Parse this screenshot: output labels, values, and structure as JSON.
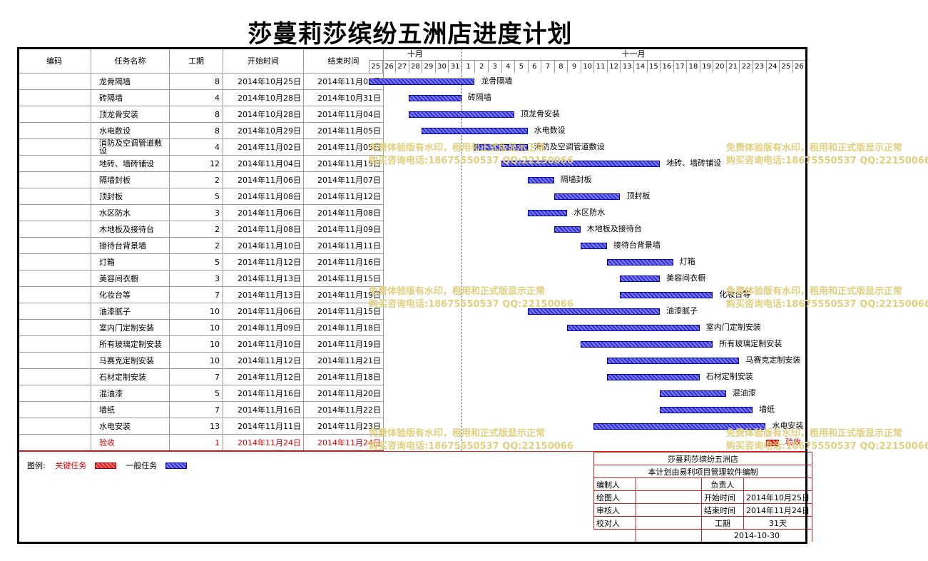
{
  "title": "莎蔓莉莎缤纷五洲店进度计划",
  "headers": {
    "code": "编码",
    "name": "任务名称",
    "duration": "工期",
    "start": "开始时间",
    "end": "结束时间"
  },
  "months": [
    {
      "label": "十月"
    },
    {
      "label": "十一月"
    }
  ],
  "days": [
    "25",
    "26",
    "27",
    "28",
    "29",
    "30",
    "31",
    "1",
    "2",
    "3",
    "4",
    "5",
    "6",
    "7",
    "8",
    "9",
    "10",
    "11",
    "12",
    "13",
    "14",
    "15",
    "16",
    "17",
    "18",
    "19",
    "20",
    "21",
    "22",
    "23",
    "24",
    "25",
    "26"
  ],
  "tasks": [
    {
      "code": "",
      "name": "龙骨隔墙",
      "duration": "8",
      "start": "2014年10月25日",
      "end": "2014年11月01日",
      "critical": false,
      "s": 0,
      "e": 8
    },
    {
      "code": "",
      "name": "砖隔墙",
      "duration": "4",
      "start": "2014年10月28日",
      "end": "2014年10月31日",
      "critical": false,
      "s": 3,
      "e": 7
    },
    {
      "code": "",
      "name": "顶龙骨安装",
      "duration": "8",
      "start": "2014年10月28日",
      "end": "2014年11月04日",
      "critical": false,
      "s": 3,
      "e": 11
    },
    {
      "code": "",
      "name": "水电数设",
      "duration": "8",
      "start": "2014年10月29日",
      "end": "2014年11月05日",
      "critical": false,
      "s": 4,
      "e": 12
    },
    {
      "code": "",
      "name": "消防及空调管道敷设",
      "duration": "4",
      "start": "2014年11月02日",
      "end": "2014年11月05日",
      "critical": false,
      "s": 8,
      "e": 12
    },
    {
      "code": "",
      "name": "地砖、墙砖铺设",
      "duration": "12",
      "start": "2014年11月04日",
      "end": "2014年11月15日",
      "critical": false,
      "s": 10,
      "e": 22
    },
    {
      "code": "",
      "name": "隔墙封板",
      "duration": "2",
      "start": "2014年11月06日",
      "end": "2014年11月07日",
      "critical": false,
      "s": 12,
      "e": 14
    },
    {
      "code": "",
      "name": "顶封板",
      "duration": "5",
      "start": "2014年11月08日",
      "end": "2014年11月12日",
      "critical": false,
      "s": 14,
      "e": 19
    },
    {
      "code": "",
      "name": "水区防水",
      "duration": "3",
      "start": "2014年11月06日",
      "end": "2014年11月08日",
      "critical": false,
      "s": 12,
      "e": 15
    },
    {
      "code": "",
      "name": "木地板及接待台",
      "duration": "2",
      "start": "2014年11月08日",
      "end": "2014年11月09日",
      "critical": false,
      "s": 14,
      "e": 16
    },
    {
      "code": "",
      "name": "接待台背景墙",
      "duration": "2",
      "start": "2014年11月10日",
      "end": "2014年11月11日",
      "critical": false,
      "s": 16,
      "e": 18
    },
    {
      "code": "",
      "name": "灯箱",
      "duration": "5",
      "start": "2014年11月12日",
      "end": "2014年11月16日",
      "critical": false,
      "s": 18,
      "e": 23
    },
    {
      "code": "",
      "name": "美容间衣橱",
      "duration": "3",
      "start": "2014年11月13日",
      "end": "2014年11月15日",
      "critical": false,
      "s": 19,
      "e": 22
    },
    {
      "code": "",
      "name": "化妆台等",
      "duration": "7",
      "start": "2014年11月13日",
      "end": "2014年11月19日",
      "critical": false,
      "s": 19,
      "e": 26
    },
    {
      "code": "",
      "name": "油漆腻子",
      "duration": "10",
      "start": "2014年11月06日",
      "end": "2014年11月15日",
      "critical": false,
      "s": 12,
      "e": 22
    },
    {
      "code": "",
      "name": "室内门定制安装",
      "duration": "10",
      "start": "2014年11月09日",
      "end": "2014年11月18日",
      "critical": false,
      "s": 15,
      "e": 25
    },
    {
      "code": "",
      "name": "所有玻璃定制安装",
      "duration": "10",
      "start": "2014年11月10日",
      "end": "2014年11月19日",
      "critical": false,
      "s": 16,
      "e": 26
    },
    {
      "code": "",
      "name": "马赛克定制安装",
      "duration": "10",
      "start": "2014年11月12日",
      "end": "2014年11月21日",
      "critical": false,
      "s": 18,
      "e": 28
    },
    {
      "code": "",
      "name": "石材定制安装",
      "duration": "7",
      "start": "2014年11月12日",
      "end": "2014年11月18日",
      "critical": false,
      "s": 18,
      "e": 25
    },
    {
      "code": "",
      "name": "混油漆",
      "duration": "5",
      "start": "2014年11月16日",
      "end": "2014年11月20日",
      "critical": false,
      "s": 22,
      "e": 27
    },
    {
      "code": "",
      "name": "墙纸",
      "duration": "7",
      "start": "2014年11月16日",
      "end": "2014年11月22日",
      "critical": false,
      "s": 22,
      "e": 29
    },
    {
      "code": "",
      "name": "水电安装",
      "duration": "13",
      "start": "2014年11月11日",
      "end": "2014年11月23日",
      "critical": false,
      "s": 17,
      "e": 30
    },
    {
      "code": "",
      "name": "验收",
      "duration": "1",
      "start": "2014年11月24日",
      "end": "2014年11月24日",
      "critical": true,
      "s": 30,
      "e": 31
    }
  ],
  "legend": {
    "label": "图例:",
    "critical": "关键任务",
    "normal": "一般任务"
  },
  "info": {
    "project": "莎蔓莉莎缤纷五洲店",
    "note": "本计划由易利项目管理软件编制",
    "editor_label": "编制人",
    "editor": "",
    "owner_label": "负责人",
    "owner": "",
    "drafter_label": "绘图人",
    "drafter": "",
    "start_label": "开始时间",
    "start": "2014年10月25日",
    "reviewer_label": "审核人",
    "reviewer": "",
    "end_label": "结束时间",
    "end": "2014年11月24日",
    "checker_label": "校对人",
    "checker": "",
    "duration_label": "工期",
    "duration": "31天",
    "date": "2014-10-30"
  },
  "watermark": {
    "line1": "免费体验版有水印，租用和正式版显示正常",
    "line2": "购买咨询电话:18675550537 QQ:22150066"
  }
}
